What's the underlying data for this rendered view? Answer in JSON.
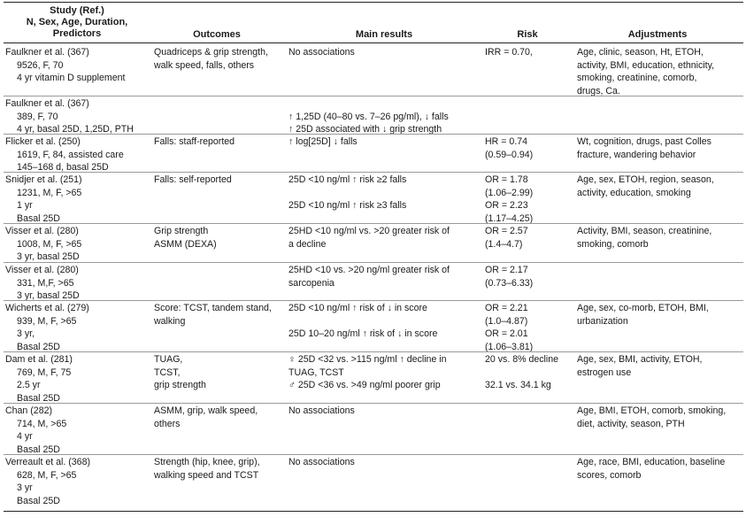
{
  "header": {
    "study": [
      "Study (Ref.)",
      "N, Sex, Age, Duration,",
      "Predictors"
    ],
    "outcomes": "Outcomes",
    "main_results": "Main results",
    "risk": "Risk",
    "adjustments": "Adjustments"
  },
  "rows": [
    {
      "study": [
        "Faulkner et al. (367)",
        "9526, F, 70",
        "4 yr vitamin D supplement"
      ],
      "outcomes": [
        "Quadriceps & grip strength,",
        "walk speed, falls, others"
      ],
      "main": [
        "No associations"
      ],
      "risk": [
        "IRR = 0.70,"
      ],
      "adjustments": [
        "Age, clinic, season, Ht, ETOH,",
        "activity, BMI, education, ethnicity,",
        "smoking, creatinine, comorb,",
        "drugs, Ca."
      ]
    },
    {
      "study": [
        "Faulkner et al. (367)",
        "389, F, 70",
        "4 yr, basal 25D, 1,25D, PTH"
      ],
      "outcomes": [],
      "main": [
        "",
        "↑ 1,25D (40–80 vs. 7–26 pg/ml), ↓ falls",
        "↑ 25D associated with ↓ grip strength"
      ],
      "risk": [],
      "adjustments": []
    },
    {
      "study": [
        "Flicker et al. (250)",
        "1619, F, 84, assisted care",
        "145–168 d, basal 25D"
      ],
      "outcomes": [
        "Falls: staff-reported"
      ],
      "main": [
        "↑ log[25D] ↓ falls"
      ],
      "risk": [
        "HR = 0.74",
        "(0.59–0.94)"
      ],
      "adjustments": [
        "Wt, cognition, drugs, past Colles",
        "fracture, wandering behavior"
      ]
    },
    {
      "study": [
        "Snidjer et al. (251)",
        "1231, M, F, >65",
        "1 yr",
        "Basal 25D"
      ],
      "outcomes": [
        "Falls: self-reported"
      ],
      "main": [
        "25D <10 ng/ml ↑ risk ≥2 falls",
        "",
        "25D <10 ng/ml ↑ risk ≥3 falls"
      ],
      "risk": [
        "OR = 1.78",
        "(1.06–2.99)",
        "OR = 2.23",
        "(1.17–4.25)"
      ],
      "adjustments": [
        "Age, sex, ETOH, region, season,",
        "activity, education, smoking"
      ]
    },
    {
      "study": [
        "Visser et al. (280)",
        "1008, M, F, >65",
        "3 yr, basal 25D"
      ],
      "outcomes": [
        "Grip strength",
        "ASMM (DEXA)"
      ],
      "main": [
        "25HD <10 ng/ml vs. >20 greater risk of",
        "a decline"
      ],
      "risk": [
        "OR = 2.57",
        "(1.4–4.7)"
      ],
      "adjustments": [
        "Activity, BMI, season, creatinine,",
        "smoking, comorb"
      ]
    },
    {
      "study": [
        "Visser et al. (280)",
        "331, M,F, >65",
        "3 yr, basal 25D"
      ],
      "outcomes": [],
      "main": [
        "25HD <10 vs. >20 ng/ml greater risk of",
        "sarcopenia"
      ],
      "risk": [
        "OR = 2.17",
        "(0.73–6.33)"
      ],
      "adjustments": []
    },
    {
      "study": [
        "Wicherts et al. (279)",
        "939, M, F, >65",
        "3 yr,",
        "Basal 25D"
      ],
      "outcomes": [
        "Score: TCST, tandem stand,",
        "walking"
      ],
      "main": [
        "25D <10 ng/ml ↑ risk of ↓ in score",
        "",
        "25D 10–20 ng/ml ↑ risk of ↓ in score"
      ],
      "risk": [
        "OR = 2.21",
        "(1.0–4.87)",
        "OR = 2.01",
        "(1.06–3.81)"
      ],
      "adjustments": [
        "Age, sex, co-morb, ETOH, BMI,",
        "urbanization"
      ]
    },
    {
      "study": [
        "Dam et al. (281)",
        "769, M, F, 75",
        "2.5 yr",
        "Basal 25D"
      ],
      "outcomes": [
        "TUAG,",
        "TCST,",
        "grip strength"
      ],
      "main": [
        "♀ 25D <32 vs. >115 ng/ml ↑ decline in",
        "TUAG, TCST",
        "♂ 25D <36 vs. >49 ng/ml poorer grip"
      ],
      "risk": [
        "20 vs. 8% decline",
        "",
        "32.1 vs. 34.1 kg"
      ],
      "adjustments": [
        "Age, sex, BMI, activity, ETOH,",
        "estrogen use"
      ]
    },
    {
      "study": [
        "Chan (282)",
        "714, M, >65",
        "4 yr",
        "Basal 25D"
      ],
      "outcomes": [
        "ASMM, grip, walk speed,",
        "others"
      ],
      "main": [
        "No associations"
      ],
      "risk": [],
      "adjustments": [
        "Age, BMI, ETOH, comorb, smoking,",
        "diet, activity, season, PTH"
      ]
    },
    {
      "study": [
        "Verreault et al. (368)",
        "628, M, F, >65",
        "3 yr",
        "Basal 25D"
      ],
      "outcomes": [
        "Strength (hip, knee, grip),",
        "walking speed and TCST"
      ],
      "main": [
        "No associations"
      ],
      "risk": [],
      "adjustments": [
        "Age, race, BMI, education, baseline",
        "scores, comorb"
      ]
    }
  ]
}
